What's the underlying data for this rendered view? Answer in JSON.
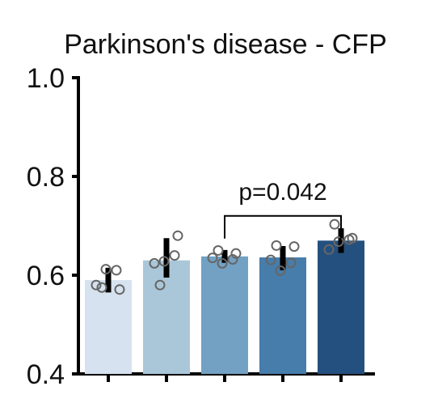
{
  "chart_data": {
    "type": "bar",
    "title": "Parkinson's disease - CFP",
    "xlabel": "",
    "ylabel": "",
    "ylim": [
      0.4,
      1.0
    ],
    "yticks": [
      "0.4",
      "0.6",
      "0.8",
      "1.0"
    ],
    "categories": [
      "",
      "",
      "",
      "",
      ""
    ],
    "values": [
      0.59,
      0.63,
      0.638,
      0.636,
      0.67
    ],
    "error_bars": [
      [
        0.565,
        0.615
      ],
      [
        0.595,
        0.675
      ],
      [
        0.625,
        0.651
      ],
      [
        0.61,
        0.659
      ],
      [
        0.645,
        0.695
      ]
    ],
    "points": [
      [
        0.58,
        0.612,
        0.61,
        0.575,
        0.571
      ],
      [
        0.624,
        0.628,
        0.64,
        0.58,
        0.68
      ],
      [
        0.635,
        0.624,
        0.632,
        0.65,
        0.644
      ],
      [
        0.631,
        0.609,
        0.625,
        0.66,
        0.658
      ],
      [
        0.652,
        0.668,
        0.672,
        0.703,
        0.675
      ]
    ],
    "colors": [
      "#d6e2ef",
      "#aac7d9",
      "#72a1c4",
      "#467daa",
      "#24507f"
    ],
    "annotation": {
      "text": "p=0.042",
      "from_index": 2,
      "to_index": 4,
      "bracket_y": 0.72,
      "bracket_drop": 0.0
    },
    "grid": false,
    "legend": "none"
  }
}
